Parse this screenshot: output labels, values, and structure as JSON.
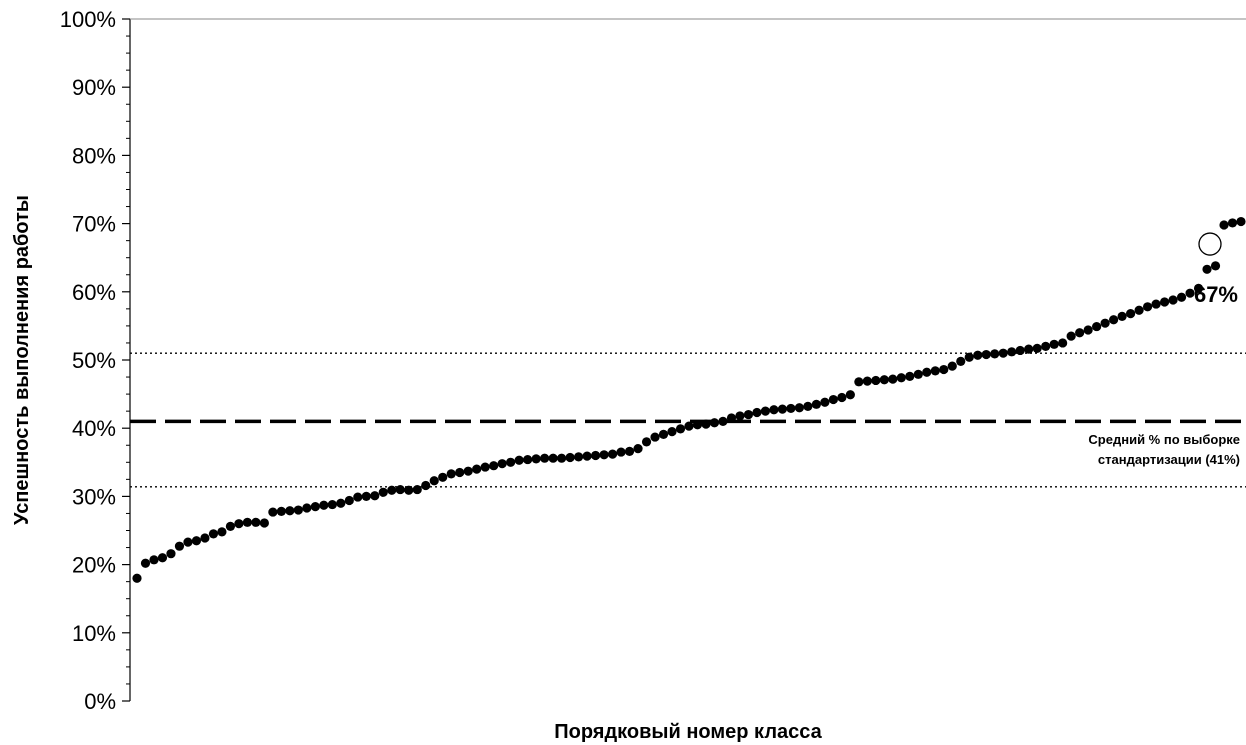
{
  "chart_data": {
    "type": "scatter",
    "title": "",
    "xlabel": "Порядковый номер класса",
    "ylabel": "Успешность выполнения работы",
    "ylim": [
      0,
      100
    ],
    "y_ticks": [
      "0%",
      "10%",
      "20%",
      "30%",
      "40%",
      "50%",
      "60%",
      "70%",
      "80%",
      "90%",
      "100%"
    ],
    "grid": false,
    "legend": "none",
    "point_color": "#000000",
    "series": [
      {
        "values": [
          18.0,
          20.2,
          20.7,
          21.0,
          21.6,
          22.7,
          23.3,
          23.5,
          23.9,
          24.5,
          24.8,
          25.6,
          26.0,
          26.2,
          26.2,
          26.1,
          27.7,
          27.8,
          27.9,
          28.0,
          28.3,
          28.5,
          28.7,
          28.8,
          29.0,
          29.4,
          29.9,
          30.0,
          30.1,
          30.6,
          30.9,
          31.0,
          30.9,
          31.0,
          31.6,
          32.3,
          32.8,
          33.3,
          33.5,
          33.7,
          34.0,
          34.3,
          34.5,
          34.8,
          35.0,
          35.3,
          35.4,
          35.5,
          35.6,
          35.6,
          35.6,
          35.7,
          35.8,
          35.9,
          36.0,
          36.1,
          36.2,
          36.5,
          36.6,
          37.0,
          38.0,
          38.7,
          39.1,
          39.5,
          39.9,
          40.3,
          40.5,
          40.6,
          40.8,
          41.0,
          41.5,
          41.8,
          42.0,
          42.3,
          42.5,
          42.7,
          42.8,
          42.9,
          43.0,
          43.2,
          43.5,
          43.8,
          44.2,
          44.5,
          44.9,
          46.8,
          46.9,
          47.0,
          47.1,
          47.2,
          47.4,
          47.6,
          47.9,
          48.2,
          48.4,
          48.6,
          49.1,
          49.8,
          50.4,
          50.7,
          50.8,
          50.9,
          51.0,
          51.2,
          51.4,
          51.6,
          51.7,
          52.0,
          52.3,
          52.5,
          53.5,
          54.0,
          54.4,
          54.9,
          55.4,
          55.9,
          56.4,
          56.8,
          57.3,
          57.8,
          58.2,
          58.5,
          58.8,
          59.2,
          59.8,
          60.5,
          63.3,
          63.8,
          69.8,
          70.1,
          70.3
        ]
      }
    ],
    "reference_lines": [
      {
        "value": 41,
        "style": "dashed"
      },
      {
        "value": 51,
        "style": "dotted"
      },
      {
        "value": 31.4,
        "style": "dotted"
      }
    ],
    "annotations": {
      "mean_label_line1": "Средний % по выборке",
      "mean_label_line2": "стандартизации (41%)",
      "highlight_value_label": "67%",
      "highlight_value": 67
    }
  }
}
